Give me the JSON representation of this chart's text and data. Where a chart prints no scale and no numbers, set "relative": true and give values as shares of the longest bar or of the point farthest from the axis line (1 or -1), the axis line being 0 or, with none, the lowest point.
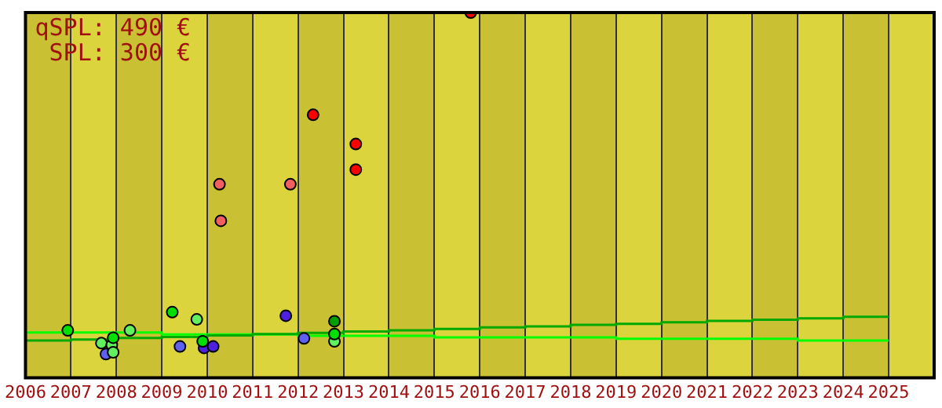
{
  "chart_data": {
    "type": "scatter",
    "relative": true,
    "xlim": [
      2006,
      2026
    ],
    "xticks": [
      2006,
      2007,
      2008,
      2009,
      2010,
      2011,
      2012,
      2013,
      2014,
      2015,
      2016,
      2017,
      2018,
      2019,
      2020,
      2021,
      2022,
      2023,
      2024,
      2025
    ],
    "grid": "x",
    "legend": false,
    "marker": "circle",
    "annotations": [
      "qSPL: 490 €",
      "SPL: 300 €"
    ],
    "bands": [
      {
        "axis": "x",
        "from": 2006,
        "to": 2007,
        "color": "#c9c033"
      },
      {
        "axis": "x",
        "from": 2007,
        "to": 2008,
        "color": "#dcd43c"
      },
      {
        "axis": "x",
        "from": 2008,
        "to": 2009,
        "color": "#c9c033"
      },
      {
        "axis": "x",
        "from": 2009,
        "to": 2010,
        "color": "#dcd43c"
      },
      {
        "axis": "x",
        "from": 2010,
        "to": 2011,
        "color": "#c9c033"
      },
      {
        "axis": "x",
        "from": 2011,
        "to": 2012,
        "color": "#dcd43c"
      },
      {
        "axis": "x",
        "from": 2012,
        "to": 2013,
        "color": "#c9c033"
      },
      {
        "axis": "x",
        "from": 2013,
        "to": 2014,
        "color": "#dcd43c"
      },
      {
        "axis": "x",
        "from": 2014,
        "to": 2015,
        "color": "#c9c033"
      },
      {
        "axis": "x",
        "from": 2015,
        "to": 2016,
        "color": "#dcd43c"
      },
      {
        "axis": "x",
        "from": 2016,
        "to": 2017,
        "color": "#c9c033"
      },
      {
        "axis": "x",
        "from": 2017,
        "to": 2018,
        "color": "#dcd43c"
      },
      {
        "axis": "x",
        "from": 2018,
        "to": 2019,
        "color": "#c9c033"
      },
      {
        "axis": "x",
        "from": 2019,
        "to": 2020,
        "color": "#dcd43c"
      },
      {
        "axis": "x",
        "from": 2020,
        "to": 2021,
        "color": "#c9c033"
      },
      {
        "axis": "x",
        "from": 2021,
        "to": 2022,
        "color": "#dcd43c"
      },
      {
        "axis": "x",
        "from": 2022,
        "to": 2023,
        "color": "#c9c033"
      },
      {
        "axis": "x",
        "from": 2023,
        "to": 2024,
        "color": "#dcd43c"
      },
      {
        "axis": "x",
        "from": 2024,
        "to": 2025,
        "color": "#c9c033"
      },
      {
        "axis": "x",
        "from": 2025,
        "to": 2026,
        "color": "#dcd43c"
      }
    ],
    "series": [
      {
        "type": "step",
        "marker": "none",
        "color": "#00a800",
        "x": [
          2006,
          2007,
          2008,
          2009,
          2010,
          2011,
          2012,
          2013,
          2014,
          2015,
          2016,
          2017,
          2018,
          2019,
          2020,
          2021,
          2022,
          2023,
          2024,
          2025
        ],
        "values": [
          0.098,
          0.102,
          0.105,
          0.109,
          0.112,
          0.116,
          0.12,
          0.123,
          0.127,
          0.13,
          0.134,
          0.138,
          0.141,
          0.145,
          0.148,
          0.152,
          0.156,
          0.159,
          0.163,
          0.167
        ]
      },
      {
        "type": "step",
        "marker": "none",
        "color": "#00ff00",
        "x": [
          2006,
          2007,
          2008,
          2009,
          2010,
          2011,
          2012,
          2013,
          2014,
          2015,
          2016,
          2017,
          2018,
          2019,
          2020,
          2021,
          2022,
          2023,
          2024,
          2025
        ],
        "values": [
          0.124,
          0.124,
          0.124,
          0.124,
          0.119,
          0.119,
          0.119,
          0.115,
          0.115,
          0.115,
          0.111,
          0.111,
          0.111,
          0.111,
          0.107,
          0.107,
          0.107,
          0.107,
          0.102,
          0.102
        ]
      },
      {
        "color": "#ff0000",
        "x": [
          2015.8,
          2012.33,
          2013.27,
          2013.27
        ],
        "values": [
          1.0,
          0.72,
          0.64,
          0.57
        ]
      },
      {
        "color": "#f06060",
        "x": [
          2010.27,
          2011.83,
          2010.3
        ],
        "values": [
          0.53,
          0.53,
          0.43
        ]
      },
      {
        "color": "#00e000",
        "x": [
          2006.93,
          2007.93,
          2009.23,
          2009.9,
          2012.8
        ],
        "values": [
          0.13,
          0.11,
          0.18,
          0.1,
          0.12
        ]
      },
      {
        "color": "#60f060",
        "x": [
          2007.67,
          2007.9,
          2007.93,
          2008.3,
          2009.77,
          2012.8
        ],
        "values": [
          0.095,
          0.09,
          0.07,
          0.13,
          0.16,
          0.1
        ]
      },
      {
        "color": "#00a000",
        "x": [
          2012.8
        ],
        "values": [
          0.155
        ]
      },
      {
        "color": "#6060f0",
        "x": [
          2007.77,
          2009.4,
          2012.13
        ],
        "values": [
          0.065,
          0.086,
          0.108
        ]
      },
      {
        "color": "#5020e0",
        "x": [
          2009.93,
          2010.13,
          2011.73
        ],
        "values": [
          0.082,
          0.086,
          0.17
        ]
      }
    ]
  }
}
